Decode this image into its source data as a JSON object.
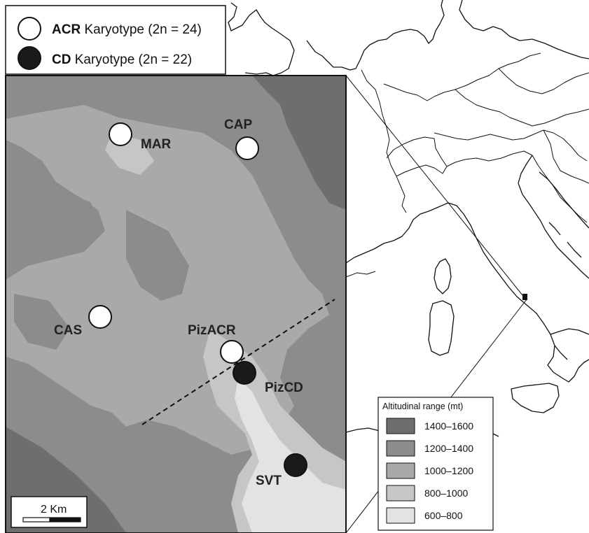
{
  "legend": {
    "acr": {
      "bold": "ACR",
      "text": " Karyotype (2n = 24)",
      "fill": "#ffffff"
    },
    "cd": {
      "bold": "CD",
      "text": " Karyotype (2n = 22)",
      "fill": "#1a1a1a"
    }
  },
  "sites": [
    {
      "id": "MAR",
      "label": "MAR",
      "karyotype": "ACR"
    },
    {
      "id": "CAP",
      "label": "CAP",
      "karyotype": "ACR"
    },
    {
      "id": "CAS",
      "label": "CAS",
      "karyotype": "ACR"
    },
    {
      "id": "PizACR",
      "label": "PizACR",
      "karyotype": "ACR"
    },
    {
      "id": "PizCD",
      "label": "PizCD",
      "karyotype": "CD"
    },
    {
      "id": "SVT",
      "label": "SVT",
      "karyotype": "CD"
    }
  ],
  "altitude_legend": {
    "title": "Altitudinal range (mt)",
    "classes": [
      {
        "label": "1400–1600",
        "color": "#6e6e6e"
      },
      {
        "label": "1200–1400",
        "color": "#8c8c8c"
      },
      {
        "label": "1000–1200",
        "color": "#a9a9a9"
      },
      {
        "label": "800–1000",
        "color": "#c6c6c6"
      },
      {
        "label": "600–800",
        "color": "#e3e3e3"
      }
    ]
  },
  "scale_bar": {
    "label": "2 Km"
  }
}
